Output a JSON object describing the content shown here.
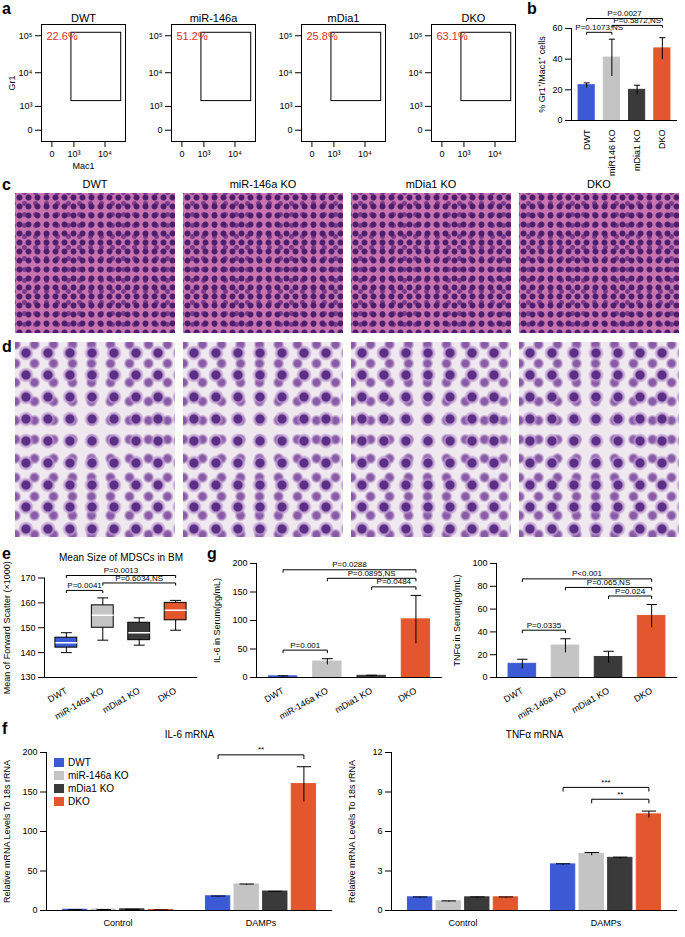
{
  "chart_data": [
    {
      "panel_label": "a",
      "type": "flow",
      "title": "DWT",
      "x_label": "Mac1",
      "y_label": "Gr1",
      "log": true,
      "xlim": [
        -300,
        40000
      ],
      "ylim": [
        -300,
        200000
      ],
      "xticks": [
        0,
        {
          "value": 1000,
          "label": "10³"
        },
        {
          "value": 10000,
          "label": "10⁴"
        }
      ],
      "yticks": [
        0,
        {
          "value": 1000,
          "label": "10³"
        },
        {
          "value": 10000,
          "label": "10⁴"
        },
        {
          "value": 100000,
          "label": "10⁵"
        }
      ],
      "gate": {
        "x": [
          800,
          30000
        ],
        "y": [
          1500,
          120000
        ]
      },
      "annotations": [
        "22.6%"
      ],
      "color": "#e0301e"
    },
    {
      "type": "flow",
      "title": "miR-146a",
      "log": true,
      "xlim": [
        -300,
        40000
      ],
      "ylim": [
        -300,
        200000
      ],
      "xticks": [
        0,
        {
          "value": 1000,
          "label": "10³"
        },
        {
          "value": 10000,
          "label": "10⁴"
        }
      ],
      "yticks": [
        0,
        {
          "value": 1000,
          "label": "10³"
        },
        {
          "value": 10000,
          "label": "10⁴"
        },
        {
          "value": 100000,
          "label": "10⁵"
        }
      ],
      "gate": {
        "x": [
          800,
          30000
        ],
        "y": [
          1500,
          120000
        ]
      },
      "annotations": [
        "51.2%"
      ],
      "color": "#e0301e"
    },
    {
      "type": "flow",
      "title": "mDia1",
      "log": true,
      "xlim": [
        -300,
        40000
      ],
      "ylim": [
        -300,
        200000
      ],
      "xticks": [
        0,
        {
          "value": 1000,
          "label": "10³"
        },
        {
          "value": 10000,
          "label": "10⁴"
        }
      ],
      "yticks": [
        0,
        {
          "value": 1000,
          "label": "10³"
        },
        {
          "value": 10000,
          "label": "10⁴"
        },
        {
          "value": 100000,
          "label": "10⁵"
        }
      ],
      "gate": {
        "x": [
          800,
          30000
        ],
        "y": [
          1500,
          120000
        ]
      },
      "annotations": [
        "25.8%"
      ],
      "color": "#e0301e"
    },
    {
      "type": "flow",
      "title": "DKO",
      "log": true,
      "xlim": [
        -300,
        40000
      ],
      "ylim": [
        -300,
        200000
      ],
      "xticks": [
        0,
        {
          "value": 1000,
          "label": "10³"
        },
        {
          "value": 10000,
          "label": "10⁴"
        }
      ],
      "yticks": [
        0,
        {
          "value": 1000,
          "label": "10³"
        },
        {
          "value": 10000,
          "label": "10⁴"
        },
        {
          "value": 100000,
          "label": "10⁵"
        }
      ],
      "gate": {
        "x": [
          800,
          30000
        ],
        "y": [
          1500,
          120000
        ]
      },
      "annotations": [
        "63.1%"
      ],
      "color": "#e0301e"
    },
    {
      "panel_label": "b",
      "type": "bar",
      "categories": [
        "DWT",
        "miR146 KO",
        "mDia1 KO",
        "DKO"
      ],
      "values": [
        23,
        41,
        20,
        47
      ],
      "errors": [
        1.5,
        12,
        3,
        7
      ],
      "colors": [
        "#3d5ad6",
        "#c4c4c4",
        "#3a3a3a",
        "#e4572e"
      ],
      "y_label": "% Gr1⁺/Mac1⁺ cells",
      "ylim": [
        0,
        60
      ],
      "yticks": [
        0,
        20,
        40,
        60
      ],
      "comparisons": [
        {
          "between": [
            "DWT",
            "miR146 KO"
          ],
          "label": "P=0.1073,NS"
        },
        {
          "between": [
            "miR146 KO",
            "DKO"
          ],
          "label": "P=0.5872,NS"
        },
        {
          "between": [
            "DWT",
            "DKO"
          ],
          "label": "P=0.0027"
        }
      ]
    },
    {
      "panel_label": "c",
      "type": "image",
      "titles": [
        "DWT",
        "miR-146a KO",
        "mDia1 KO",
        "DKO"
      ]
    },
    {
      "panel_label": "d",
      "type": "image",
      "titles": [
        null,
        null,
        null,
        null
      ]
    },
    {
      "panel_label": "e",
      "type": "box",
      "title": "Mean Size of MDSCs in BM",
      "categories": [
        "DWT",
        "miR-146a KO",
        "mDia1 KO",
        "DKO"
      ],
      "boxes": [
        {
          "min": 140,
          "q1": 142,
          "median": 144,
          "q3": 146,
          "max": 148
        },
        {
          "min": 145,
          "q1": 150,
          "median": 155,
          "q3": 159,
          "max": 162
        },
        {
          "min": 143,
          "q1": 145,
          "median": 148,
          "q3": 152,
          "max": 154
        },
        {
          "min": 149,
          "q1": 153,
          "median": 157,
          "q3": 160,
          "max": 161
        }
      ],
      "colors": [
        "#3d5ad6",
        "#c4c4c4",
        "#3a3a3a",
        "#e4572e"
      ],
      "y_label": "Mean of Forward Scatter (×1000)",
      "ylim": [
        130,
        170
      ],
      "yticks": [
        130,
        140,
        150,
        160,
        170
      ],
      "comparisons": [
        {
          "between": [
            "DWT",
            "miR-146a KO"
          ],
          "label": "P=0.0041"
        },
        {
          "between": [
            "miR-146a KO",
            "DKO"
          ],
          "label": "P=0.6034,NS"
        },
        {
          "between": [
            "DWT",
            "DKO"
          ],
          "label": "P=0.0013"
        }
      ]
    },
    {
      "panel_label": "g",
      "type": "bar",
      "categories": [
        "DWT",
        "miR-146a KO",
        "mDia1 KO",
        "DKO"
      ],
      "values": [
        2,
        28,
        3,
        102
      ],
      "errors": [
        1,
        5,
        1,
        42
      ],
      "colors": [
        "#3d5ad6",
        "#c4c4c4",
        "#3a3a3a",
        "#e4572e"
      ],
      "y_label": "IL-6 in Serum(pg/mL)",
      "ylim": [
        0,
        200
      ],
      "yticks": [
        0,
        50,
        100,
        150,
        200
      ],
      "comparisons": [
        {
          "between": [
            "DWT",
            "miR-146a KO"
          ],
          "label": "P=0.001"
        },
        {
          "between": [
            "mDia1 KO",
            "DKO"
          ],
          "label": "P=0.0484"
        },
        {
          "between": [
            "miR-146a KO",
            "DKO"
          ],
          "label": "P=0.0895,NS"
        },
        {
          "between": [
            "DWT",
            "DKO"
          ],
          "label": "P=0.0288"
        }
      ]
    },
    {
      "type": "bar",
      "categories": [
        "DWT",
        "miR-146a KO",
        "mDia1 KO",
        "DKO"
      ],
      "values": [
        12,
        28,
        18,
        54
      ],
      "errors": [
        4,
        6,
        5,
        10
      ],
      "colors": [
        "#3d5ad6",
        "#c4c4c4",
        "#3a3a3a",
        "#e4572e"
      ],
      "y_label": "TNFα in Serum(pg/mL)",
      "ylim": [
        0,
        100
      ],
      "yticks": [
        0,
        20,
        40,
        60,
        80,
        100
      ],
      "comparisons": [
        {
          "between": [
            "DWT",
            "miR-146a KO"
          ],
          "label": "P=0.0335"
        },
        {
          "between": [
            "mDia1 KO",
            "DKO"
          ],
          "label": "P=0.024"
        },
        {
          "between": [
            "miR-146a KO",
            "DKO"
          ],
          "label": "P=0.065,NS"
        },
        {
          "between": [
            "DWT",
            "DKO"
          ],
          "label": "P<0.001"
        }
      ]
    },
    {
      "panel_label": "f",
      "type": "grouped_bar",
      "title": "IL-6 mRNA",
      "categories": [
        "Control",
        "DAMPs"
      ],
      "series": [
        {
          "name": "DWT",
          "color": "#3d5ad6",
          "values": [
            1,
            18
          ],
          "errors": [
            0.05,
            0.3
          ]
        },
        {
          "name": "miR-146a KO",
          "color": "#c4c4c4",
          "values": [
            1.2,
            33
          ],
          "errors": [
            0.05,
            0.5
          ]
        },
        {
          "name": "mDia1 KO",
          "color": "#3a3a3a",
          "values": [
            1.5,
            24
          ],
          "errors": [
            0.1,
            0.3
          ]
        },
        {
          "name": "DKO",
          "color": "#e4572e",
          "values": [
            0.7,
            160
          ],
          "errors": [
            0.05,
            22
          ]
        }
      ],
      "y_label": "Relative mRNA Levels To 18s rRNA",
      "ylim": [
        0,
        200
      ],
      "yticks": [
        0,
        50,
        100,
        150,
        200
      ],
      "legend": "top-left",
      "comparisons": [
        {
          "group": "DAMPs",
          "between": [
            "DWT",
            "DKO"
          ],
          "label": "**"
        }
      ]
    },
    {
      "type": "grouped_bar",
      "title": "TNFα mRNA",
      "categories": [
        "Control",
        "DAMPs"
      ],
      "series": [
        {
          "name": "DWT",
          "color": "#3d5ad6",
          "values": [
            1,
            3.5
          ],
          "errors": [
            0.03,
            0.05
          ]
        },
        {
          "name": "miR-146a KO",
          "color": "#c4c4c4",
          "values": [
            0.7,
            4.3
          ],
          "errors": [
            0.03,
            0.1
          ]
        },
        {
          "name": "mDia1 KO",
          "color": "#3a3a3a",
          "values": [
            1,
            4.0
          ],
          "errors": [
            0.03,
            0.05
          ]
        },
        {
          "name": "DKO",
          "color": "#e4572e",
          "values": [
            1,
            7.3
          ],
          "errors": [
            0.03,
            0.25
          ]
        }
      ],
      "y_label": "Relative mRNA Levels To 18s rRNA",
      "ylim": [
        0,
        12
      ],
      "yticks": [
        0,
        3,
        6,
        9,
        12
      ],
      "comparisons": [
        {
          "group": "DAMPs",
          "between": [
            "miR-146a KO",
            "DKO"
          ],
          "label": "**"
        },
        {
          "group": "DAMPs",
          "between": [
            "DWT",
            "DKO"
          ],
          "label": "***"
        }
      ]
    }
  ]
}
